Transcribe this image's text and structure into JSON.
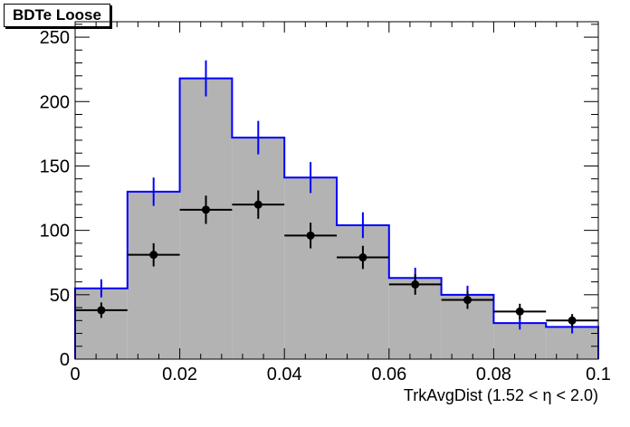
{
  "chart_data": {
    "type": "histogram",
    "title": "BDTe Loose",
    "xlabel": "TrkAvgDist (1.52 <  η < 2.0)",
    "ylabel": "",
    "xlim": [
      0,
      0.1
    ],
    "ylim": [
      0,
      262
    ],
    "x_ticks": [
      "0",
      "0.02",
      "0.04",
      "0.06",
      "0.08",
      "0.1"
    ],
    "y_ticks": [
      "0",
      "50",
      "100",
      "150",
      "200",
      "250"
    ],
    "grid": false,
    "legend": "none",
    "bin_edges": [
      0,
      0.01,
      0.02,
      0.03,
      0.04,
      0.05,
      0.06,
      0.07,
      0.08,
      0.09,
      0.1
    ],
    "series": [
      {
        "style": "filled-histogram",
        "fill_color": "#b3b3b3",
        "line_color": "#0000ff",
        "values": [
          55,
          130,
          218,
          172,
          141,
          104,
          63,
          50,
          28,
          25
        ],
        "errors": [
          7,
          11,
          14,
          13,
          12,
          10,
          8,
          7,
          5,
          5
        ]
      },
      {
        "style": "points",
        "color": "#000000",
        "values": [
          38,
          81,
          116,
          120,
          96,
          79,
          58,
          46,
          37,
          30
        ],
        "errors": [
          6,
          9,
          11,
          11,
          10,
          9,
          8,
          7,
          6,
          5
        ]
      }
    ]
  }
}
